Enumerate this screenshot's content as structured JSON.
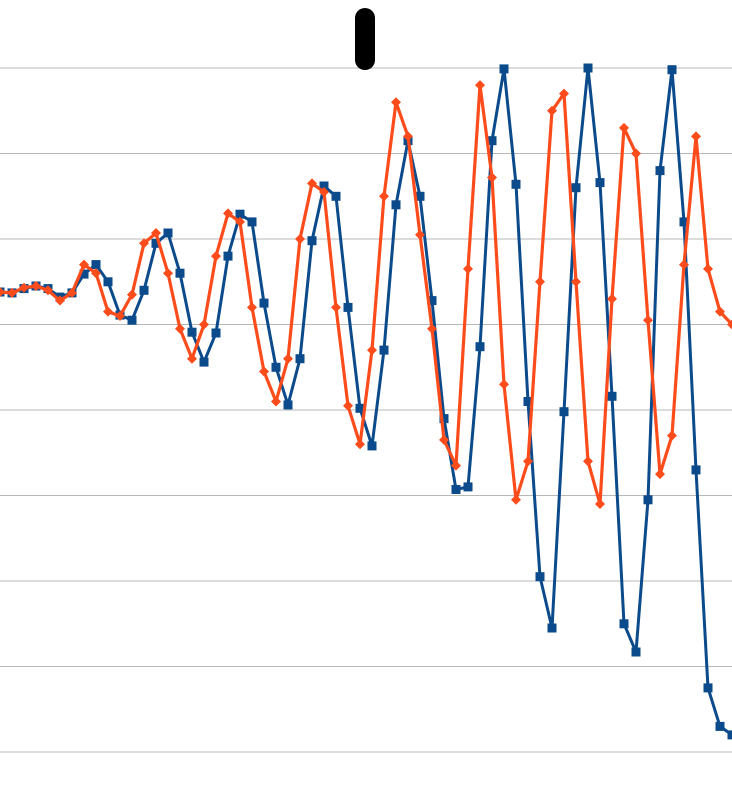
{
  "chart_data": {
    "type": "line",
    "title": "",
    "xlabel": "",
    "ylabel": "",
    "grid": true,
    "legend": "none",
    "ylim": [
      -7,
      1
    ],
    "gridlines_y": [
      1,
      0,
      -1,
      -2,
      -3,
      -4,
      -5,
      -6,
      -7
    ],
    "xlim": [
      0,
      183
    ],
    "series": [
      {
        "color": "#0B4A8B",
        "marker": "square",
        "x": [
          0,
          3,
          6,
          9,
          12,
          15,
          18,
          21,
          24,
          27,
          30,
          33,
          36,
          39,
          42,
          45,
          48,
          51,
          54,
          57,
          60,
          63,
          66,
          69,
          72,
          75,
          78,
          81,
          84,
          87,
          90,
          93,
          96,
          99,
          102,
          105,
          108,
          111,
          114,
          117,
          120,
          123,
          126,
          129,
          132,
          135,
          138,
          141,
          144,
          147,
          150,
          153,
          156,
          159,
          162,
          165,
          168,
          171,
          174,
          177,
          180,
          183
        ],
        "values": [
          -1.62,
          -1.63,
          -1.58,
          -1.55,
          -1.58,
          -1.68,
          -1.63,
          -1.41,
          -1.3,
          -1.5,
          -1.89,
          -1.95,
          -1.6,
          -1.05,
          -0.93,
          -1.4,
          -2.09,
          -2.44,
          -2.1,
          -1.2,
          -0.71,
          -0.8,
          -1.75,
          -2.5,
          -2.94,
          -2.4,
          -1.02,
          -0.38,
          -0.5,
          -1.8,
          -2.98,
          -3.42,
          -2.3,
          -0.6,
          0.15,
          -0.5,
          -1.72,
          -3.1,
          -3.93,
          -3.9,
          -2.26,
          0.15,
          0.99,
          -0.36,
          -2.9,
          -4.95,
          -5.55,
          -3.02,
          -0.4,
          1.0,
          -0.34,
          -2.84,
          -5.5,
          -5.83,
          -4.05,
          -0.2,
          0.98,
          -0.8,
          -3.7,
          -6.25,
          -6.7,
          -6.8
        ]
      },
      {
        "color": "#FC4C1C",
        "marker": "diamond",
        "x": [
          0,
          3,
          6,
          9,
          12,
          15,
          18,
          21,
          24,
          27,
          30,
          33,
          36,
          39,
          42,
          45,
          48,
          51,
          54,
          57,
          60,
          63,
          66,
          69,
          72,
          75,
          78,
          81,
          84,
          87,
          90,
          93,
          96,
          99,
          102,
          105,
          108,
          111,
          114,
          117,
          120,
          123,
          126,
          129,
          132,
          135,
          138,
          141,
          144,
          147,
          150,
          153,
          156,
          159,
          162,
          165,
          168,
          171,
          174,
          177,
          180,
          183
        ],
        "values": [
          -1.62,
          -1.63,
          -1.57,
          -1.55,
          -1.6,
          -1.72,
          -1.63,
          -1.3,
          -1.4,
          -1.85,
          -1.9,
          -1.65,
          -1.05,
          -0.93,
          -1.4,
          -2.05,
          -2.4,
          -2.0,
          -1.2,
          -0.7,
          -0.8,
          -1.8,
          -2.55,
          -2.9,
          -2.4,
          -1.0,
          -0.35,
          -0.45,
          -1.8,
          -2.95,
          -3.4,
          -2.3,
          -0.5,
          0.6,
          0.2,
          -0.95,
          -2.05,
          -3.35,
          -3.65,
          -1.35,
          0.8,
          -0.28,
          -2.7,
          -4.05,
          -3.6,
          -1.5,
          0.5,
          0.7,
          -1.5,
          -3.6,
          -4.1,
          -1.7,
          0.3,
          0.0,
          -1.95,
          -3.75,
          -3.3,
          -1.3,
          0.2,
          -1.35,
          -1.85,
          -2.0
        ]
      }
    ]
  },
  "annotation": {
    "marker": "pin",
    "color": "#000000"
  }
}
